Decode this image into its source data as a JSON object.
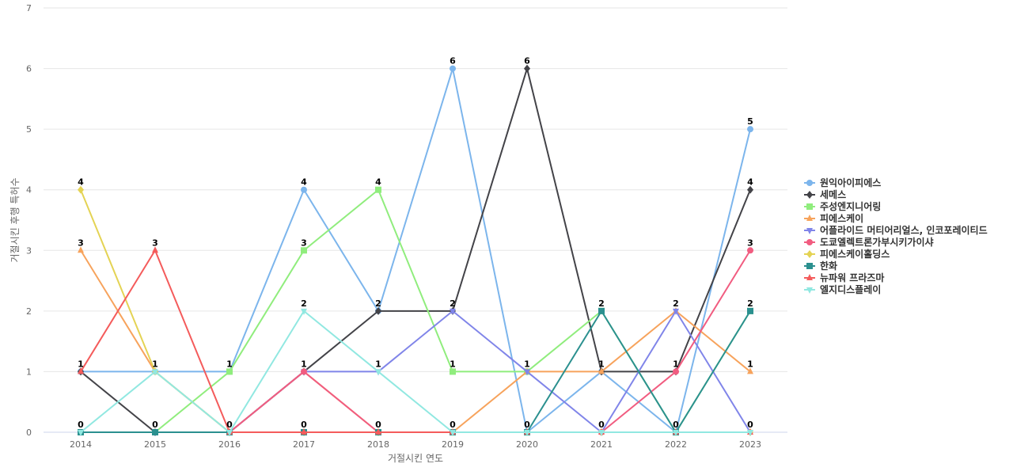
{
  "chart_data": {
    "type": "line",
    "xlabel": "거절시킨 연도",
    "ylabel": "거절시킨 후행 특허수",
    "ylim": [
      0,
      7
    ],
    "y_ticks": [
      0,
      1,
      2,
      3,
      4,
      5,
      6,
      7
    ],
    "grid": true,
    "legend_position": "right",
    "categories": [
      "2014",
      "2015",
      "2016",
      "2017",
      "2018",
      "2019",
      "2020",
      "2021",
      "2022",
      "2023"
    ],
    "series": [
      {
        "name": "원익아이피에스",
        "color": "#7cb5ec",
        "marker": "circle",
        "values": [
          1,
          1,
          1,
          4,
          2,
          6,
          0,
          1,
          0,
          5
        ]
      },
      {
        "name": "세메스",
        "color": "#434348",
        "marker": "diamond",
        "values": [
          1,
          0,
          0,
          1,
          2,
          2,
          6,
          1,
          1,
          4
        ]
      },
      {
        "name": "주성엔지니어링",
        "color": "#90ed7d",
        "marker": "square",
        "values": [
          0,
          0,
          1,
          3,
          4,
          1,
          1,
          2,
          0,
          2
        ]
      },
      {
        "name": "피에스케이",
        "color": "#f7a35c",
        "marker": "triangle",
        "values": [
          3,
          1,
          0,
          1,
          0,
          0,
          1,
          1,
          2,
          1
        ]
      },
      {
        "name": "어플라이드 머티어리얼스, 인코포레이티드",
        "color": "#8085e9",
        "marker": "triangle-down",
        "values": [
          0,
          0,
          0,
          1,
          1,
          2,
          1,
          0,
          2,
          0
        ]
      },
      {
        "name": "도쿄엘렉트론가부시키가이샤",
        "color": "#f15c80",
        "marker": "circle",
        "values": [
          0,
          0,
          0,
          1,
          0,
          0,
          0,
          0,
          1,
          3
        ]
      },
      {
        "name": "피에스케이홀딩스",
        "color": "#e4d354",
        "marker": "diamond",
        "values": [
          4,
          1,
          0,
          0,
          0,
          0,
          0,
          0,
          0,
          0
        ]
      },
      {
        "name": "한화",
        "color": "#2b908f",
        "marker": "square",
        "values": [
          0,
          0,
          0,
          0,
          0,
          0,
          0,
          2,
          0,
          2
        ]
      },
      {
        "name": "뉴파워 프라즈마",
        "color": "#f45b5b",
        "marker": "triangle",
        "values": [
          1,
          3,
          0,
          0,
          0,
          0,
          0,
          0,
          0,
          0
        ]
      },
      {
        "name": "엘지디스플레이",
        "color": "#91e8e1",
        "marker": "triangle-down",
        "values": [
          0,
          1,
          0,
          2,
          1,
          0,
          0,
          0,
          0,
          0
        ]
      }
    ],
    "data_labels": [
      {
        "category": "2014",
        "value": 4
      },
      {
        "category": "2014",
        "value": 3
      },
      {
        "category": "2014",
        "value": 1
      },
      {
        "category": "2014",
        "value": 0
      },
      {
        "category": "2015",
        "value": 3
      },
      {
        "category": "2015",
        "value": 1
      },
      {
        "category": "2015",
        "value": 0
      },
      {
        "category": "2016",
        "value": 1
      },
      {
        "category": "2016",
        "value": 0
      },
      {
        "category": "2017",
        "value": 4
      },
      {
        "category": "2017",
        "value": 3
      },
      {
        "category": "2017",
        "value": 2
      },
      {
        "category": "2017",
        "value": 1
      },
      {
        "category": "2017",
        "value": 0
      },
      {
        "category": "2018",
        "value": 4
      },
      {
        "category": "2018",
        "value": 2
      },
      {
        "category": "2018",
        "value": 1
      },
      {
        "category": "2018",
        "value": 0
      },
      {
        "category": "2019",
        "value": 6
      },
      {
        "category": "2019",
        "value": 2
      },
      {
        "category": "2019",
        "value": 1
      },
      {
        "category": "2019",
        "value": 0
      },
      {
        "category": "2020",
        "value": 6
      },
      {
        "category": "2020",
        "value": 1
      },
      {
        "category": "2020",
        "value": 0
      },
      {
        "category": "2021",
        "value": 2
      },
      {
        "category": "2021",
        "value": 1
      },
      {
        "category": "2021",
        "value": 0
      },
      {
        "category": "2022",
        "value": 2
      },
      {
        "category": "2022",
        "value": 1
      },
      {
        "category": "2022",
        "value": 0
      },
      {
        "category": "2023",
        "value": 5
      },
      {
        "category": "2023",
        "value": 4
      },
      {
        "category": "2023",
        "value": 3
      },
      {
        "category": "2023",
        "value": 2
      },
      {
        "category": "2023",
        "value": 1
      },
      {
        "category": "2023",
        "value": 0
      }
    ]
  }
}
